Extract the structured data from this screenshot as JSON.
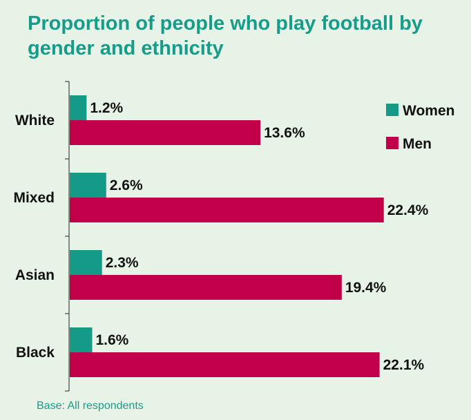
{
  "title_line1": "Proportion of people who play football by",
  "title_line2": "gender and ethnicity",
  "footnote": "Base: All respondents",
  "colors": {
    "women": "#169a88",
    "men": "#c2004a",
    "background": "#e8f3e7",
    "title": "#179c8a"
  },
  "chart_data": {
    "type": "bar",
    "orientation": "horizontal",
    "title": "Proportion of people who play football by gender and ethnicity",
    "categories": [
      "White",
      "Mixed",
      "Asian",
      "Black"
    ],
    "series": [
      {
        "name": "Women",
        "values": [
          1.2,
          2.6,
          2.3,
          1.6
        ],
        "labels": [
          "1.2%",
          "2.6%",
          "2.3%",
          "1.6%"
        ]
      },
      {
        "name": "Men",
        "values": [
          13.6,
          22.4,
          19.4,
          22.1
        ],
        "labels": [
          "13.6%",
          "22.4%",
          "19.4%",
          "22.1%"
        ]
      }
    ],
    "xlim": [
      0,
      25
    ],
    "legend": "top-right",
    "grid": false
  }
}
